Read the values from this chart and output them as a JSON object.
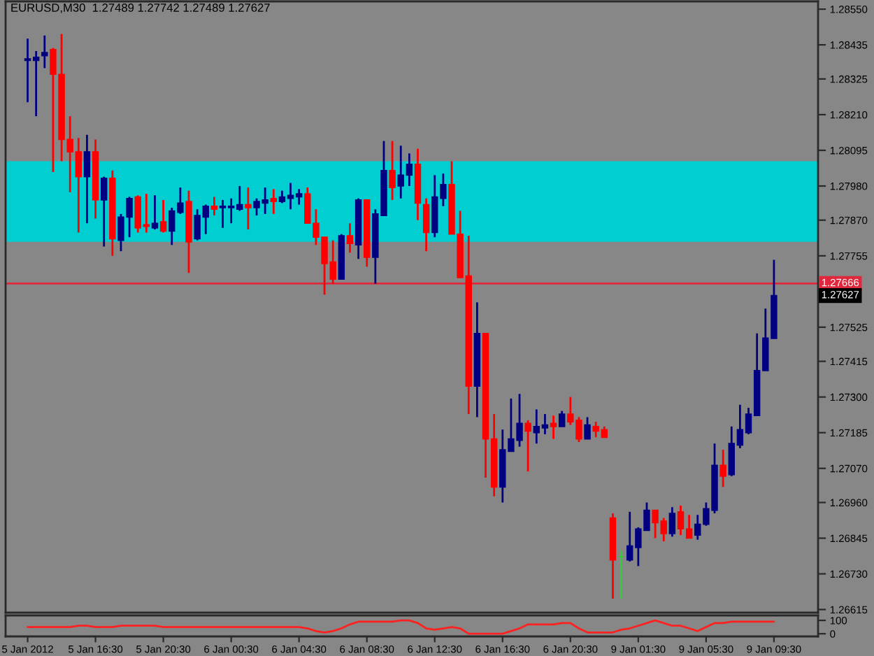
{
  "chart_data": [
    {
      "type": "candlestick",
      "title": "EURUSD,M30  1.27489 1.27742 1.27489 1.27627",
      "categories": [
        null,
        null,
        null,
        null,
        null,
        null,
        null,
        null,
        null,
        null,
        null,
        null,
        null,
        null,
        null,
        null,
        null,
        null,
        null,
        null,
        null,
        null,
        null,
        null,
        null,
        null,
        null,
        null,
        null,
        null,
        null,
        null,
        null,
        null,
        null,
        null,
        null,
        null,
        null,
        null,
        null,
        null,
        null,
        null,
        null,
        null,
        null,
        null,
        null,
        null,
        null,
        null,
        null,
        null,
        null,
        null,
        null,
        null,
        null,
        null,
        null,
        null,
        null,
        null,
        null,
        null,
        null,
        null,
        null,
        null,
        null,
        null,
        null,
        null,
        null,
        null,
        null,
        null,
        null,
        null,
        null,
        null,
        null,
        null,
        null,
        null,
        null,
        null,
        null
      ],
      "ohlc": [
        [
          1.28385,
          1.28455,
          1.2825,
          1.2839
        ],
        [
          1.28385,
          1.28415,
          1.28205,
          1.28395
        ],
        [
          1.284,
          1.28465,
          1.2836,
          1.2841
        ],
        [
          1.2842,
          1.28425,
          1.28025,
          1.2834
        ],
        [
          1.2834,
          1.2847,
          1.2806,
          1.2813
        ],
        [
          1.2813,
          1.28205,
          1.2796,
          1.2809
        ],
        [
          1.2809,
          1.28135,
          1.2783,
          1.2801
        ],
        [
          1.2801,
          1.28145,
          1.2786,
          1.2809
        ],
        [
          1.2809,
          1.2813,
          1.27875,
          1.27935
        ],
        [
          1.27935,
          1.2801,
          1.27785,
          1.28005
        ],
        [
          1.28005,
          1.2803,
          1.27755,
          1.2781
        ],
        [
          1.27805,
          1.2789,
          1.2777,
          1.2788
        ],
        [
          1.2788,
          1.27945,
          1.27815,
          1.2794
        ],
        [
          1.27945,
          1.2795,
          1.2783,
          1.27845
        ],
        [
          1.27855,
          1.27955,
          1.2783,
          1.2785
        ],
        [
          1.27845,
          1.2795,
          1.2784,
          1.2786
        ],
        [
          1.27865,
          1.27935,
          1.2783,
          1.27835
        ],
        [
          1.27835,
          1.2791,
          1.2779,
          1.279
        ],
        [
          1.27895,
          1.27975,
          1.2789,
          1.27925
        ],
        [
          1.2793,
          1.27965,
          1.277,
          1.278
        ],
        [
          1.2781,
          1.27905,
          1.27805,
          1.27885
        ],
        [
          1.2788,
          1.2792,
          1.27825,
          1.27915
        ],
        [
          1.27915,
          1.27945,
          1.27885,
          1.27905
        ],
        [
          1.2791,
          1.27935,
          1.27845,
          1.27915
        ],
        [
          1.2791,
          1.2794,
          1.2786,
          1.27915
        ],
        [
          1.27905,
          1.2798,
          1.279,
          1.2792
        ],
        [
          1.2792,
          1.27975,
          1.2784,
          1.2791
        ],
        [
          1.2791,
          1.2794,
          1.27885,
          1.2793
        ],
        [
          1.27925,
          1.27975,
          1.2789,
          1.27935
        ],
        [
          1.2794,
          1.2797,
          1.2789,
          1.2793
        ],
        [
          1.2793,
          1.27965,
          1.27925,
          1.27945
        ],
        [
          1.2794,
          1.2799,
          1.27905,
          1.2795
        ],
        [
          1.27945,
          1.2797,
          1.2792,
          1.27955
        ],
        [
          1.27955,
          1.27975,
          1.2786,
          1.2786
        ],
        [
          1.2786,
          1.27905,
          1.2779,
          1.27815
        ],
        [
          1.27815,
          1.27815,
          1.2763,
          1.2773
        ],
        [
          1.27735,
          1.27805,
          1.27665,
          1.2768
        ],
        [
          1.2768,
          1.27825,
          1.2768,
          1.2782
        ],
        [
          1.2782,
          1.2786,
          1.27765,
          1.27795
        ],
        [
          1.2779,
          1.2794,
          1.27745,
          1.27935
        ],
        [
          1.27935,
          1.27935,
          1.2772,
          1.2775
        ],
        [
          1.2775,
          1.27905,
          1.27665,
          1.2789
        ],
        [
          1.27885,
          1.28125,
          1.27885,
          1.2803
        ],
        [
          1.2803,
          1.28125,
          1.27935,
          1.27975
        ],
        [
          1.2798,
          1.2811,
          1.2794,
          1.28015
        ],
        [
          1.28015,
          1.28085,
          1.2798,
          1.2805
        ],
        [
          1.2805,
          1.281,
          1.2787,
          1.27925
        ],
        [
          1.2792,
          1.2794,
          1.2777,
          1.2783
        ],
        [
          1.2783,
          1.28015,
          1.27815,
          1.27945
        ],
        [
          1.2794,
          1.2802,
          1.27915,
          1.27985
        ],
        [
          1.27985,
          1.2806,
          1.27825,
          1.27825
        ],
        [
          1.27825,
          1.279,
          1.27685,
          1.27685
        ],
        [
          1.2769,
          1.2782,
          1.27245,
          1.27335
        ],
        [
          1.27335,
          1.27605,
          1.27235,
          1.27505
        ],
        [
          1.27505,
          1.27505,
          1.2704,
          1.27165
        ],
        [
          1.27165,
          1.27245,
          1.2698,
          1.2701
        ],
        [
          1.2701,
          1.27195,
          1.2696,
          1.2713
        ],
        [
          1.27125,
          1.27295,
          1.27125,
          1.27165
        ],
        [
          1.2716,
          1.2731,
          1.2714,
          1.27215
        ],
        [
          1.27215,
          1.27225,
          1.2706,
          1.2719
        ],
        [
          1.27185,
          1.2726,
          1.2715,
          1.27205
        ],
        [
          1.272,
          1.27245,
          1.2718,
          1.2721
        ],
        [
          1.27215,
          1.2724,
          1.27165,
          1.27205
        ],
        [
          1.27205,
          1.27255,
          1.27205,
          1.27245
        ],
        [
          1.27245,
          1.273,
          1.2721,
          1.2722
        ],
        [
          1.27225,
          1.27235,
          1.27155,
          1.27165
        ],
        [
          1.27165,
          1.27235,
          1.27165,
          1.2721
        ],
        [
          1.27205,
          1.2722,
          1.2717,
          1.2719
        ],
        [
          1.27195,
          1.27205,
          1.2717,
          1.2717
        ],
        [
          1.2691,
          1.26925,
          1.2665,
          1.26775
        ],
        [
          1.26785,
          1.26805,
          1.2665,
          1.26785
        ],
        [
          1.26775,
          1.2693,
          1.2677,
          1.2682
        ],
        [
          1.26815,
          1.2688,
          1.26755,
          1.26875
        ],
        [
          1.2687,
          1.2696,
          1.2687,
          1.26935
        ],
        [
          1.26935,
          1.26935,
          1.26845,
          1.26895
        ],
        [
          1.269,
          1.2691,
          1.26835,
          1.2686
        ],
        [
          1.2686,
          1.26945,
          1.2685,
          1.26925
        ],
        [
          1.2693,
          1.2695,
          1.26855,
          1.26875
        ],
        [
          1.26875,
          1.2692,
          1.26845,
          1.26845
        ],
        [
          1.26855,
          1.2692,
          1.2684,
          1.2689
        ],
        [
          1.2689,
          1.2696,
          1.26885,
          1.2694
        ],
        [
          1.26935,
          1.2715,
          1.26925,
          1.2708
        ],
        [
          1.2708,
          1.2713,
          1.2701,
          1.27045
        ],
        [
          1.2705,
          1.27205,
          1.27045,
          1.2715
        ],
        [
          1.27145,
          1.27275,
          1.27135,
          1.27195
        ],
        [
          1.27185,
          1.27265,
          1.2718,
          1.27245
        ],
        [
          1.2724,
          1.27505,
          1.2724,
          1.27385
        ],
        [
          1.27385,
          1.27585,
          1.27385,
          1.2749
        ],
        [
          1.27489,
          1.27742,
          1.27489,
          1.27627
        ]
      ],
      "colors": [
        "#000080",
        "#000080",
        "#000080",
        "#ff0000",
        "#ff0000",
        "#ff0000",
        "#ff0000",
        "#000080",
        "#ff0000",
        "#000080",
        "#ff0000",
        "#000080",
        "#000080",
        "#ff0000",
        "#ff0000",
        "#000080",
        "#ff0000",
        "#000080",
        "#000080",
        "#ff0000",
        "#000080",
        "#000080",
        "#ff0000",
        "#000080",
        "#000080",
        "#000080",
        "#ff0000",
        "#000080",
        "#000080",
        "#ff0000",
        "#000080",
        "#000080",
        "#000080",
        "#ff0000",
        "#ff0000",
        "#ff0000",
        "#ff0000",
        "#000080",
        "#ff0000",
        "#000080",
        "#ff0000",
        "#000080",
        "#000080",
        "#ff0000",
        "#000080",
        "#000080",
        "#ff0000",
        "#ff0000",
        "#000080",
        "#000080",
        "#ff0000",
        "#ff0000",
        "#ff0000",
        "#000080",
        "#ff0000",
        "#ff0000",
        "#000080",
        "#000080",
        "#000080",
        "#ff0000",
        "#000080",
        "#000080",
        "#ff0000",
        "#000080",
        "#ff0000",
        "#ff0000",
        "#000080",
        "#ff0000",
        "#ff0000",
        "#ff0000",
        "#32cd32",
        "#000080",
        "#000080",
        "#000080",
        "#ff0000",
        "#ff0000",
        "#000080",
        "#ff0000",
        "#ff0000",
        "#000080",
        "#000080",
        "#000080",
        "#ff0000",
        "#000080",
        "#000080",
        "#000080",
        "#000080",
        "#000080",
        "#000080"
      ],
      "bands": [
        {
          "axis": "y",
          "from": 1.278,
          "to": 1.2806,
          "color": "#00ced1"
        }
      ],
      "ylim": [
        1.26605,
        1.28575
      ],
      "yticks": [
        {
          "value": 1.2855,
          "label": "1.28550"
        },
        {
          "value": 1.28435,
          "label": "1.28435"
        },
        {
          "value": 1.28325,
          "label": "1.28325"
        },
        {
          "value": 1.2821,
          "label": "1.28210"
        },
        {
          "value": 1.28095,
          "label": "1.28095"
        },
        {
          "value": 1.2798,
          "label": "1.27980"
        },
        {
          "value": 1.2787,
          "label": "1.27870"
        },
        {
          "value": 1.27755,
          "label": "1.27755"
        },
        {
          "value": 1.27525,
          "label": "1.27525"
        },
        {
          "value": 1.27415,
          "label": "1.27415"
        },
        {
          "value": 1.273,
          "label": "1.27300"
        },
        {
          "value": 1.27185,
          "label": "1.27185"
        },
        {
          "value": 1.2707,
          "label": "1.27070"
        },
        {
          "value": 1.2696,
          "label": "1.26960"
        },
        {
          "value": 1.26845,
          "label": "1.26845"
        },
        {
          "value": 1.2673,
          "label": "1.26730"
        },
        {
          "value": 1.26615,
          "label": "1.26615"
        }
      ],
      "ref_lines": [
        {
          "axis": "y",
          "value": 1.27666,
          "label": "1.27666",
          "color": "#e0283c"
        }
      ],
      "annotations": [
        "1.27627"
      ]
    },
    {
      "type": "line",
      "categories": [
        "5 Jan 2012",
        null,
        null,
        null,
        null,
        null,
        null,
        null,
        "5 Jan 16:30",
        null,
        null,
        null,
        null,
        null,
        null,
        null,
        "5 Jan 20:30",
        null,
        null,
        null,
        null,
        null,
        null,
        null,
        "6 Jan 00:30",
        null,
        null,
        null,
        null,
        null,
        null,
        null,
        "6 Jan 04:30",
        null,
        null,
        null,
        null,
        null,
        null,
        null,
        "6 Jan 08:30",
        null,
        null,
        null,
        null,
        null,
        null,
        null,
        "6 Jan 12:30",
        null,
        null,
        null,
        null,
        null,
        null,
        null,
        "6 Jan 16:30",
        null,
        null,
        null,
        null,
        null,
        null,
        null,
        "6 Jan 20:30",
        null,
        null,
        null,
        null,
        null,
        null,
        null,
        "9 Jan 01:30",
        null,
        null,
        null,
        null,
        null,
        null,
        null,
        "9 Jan 05:30",
        null,
        null,
        null,
        null,
        null,
        null,
        null,
        "9 Jan 09:30"
      ],
      "series": [
        {
          "color": "#ff2020",
          "values": [
            50,
            50,
            50,
            50,
            50,
            50,
            60,
            60,
            50,
            50,
            50,
            60,
            60,
            60,
            60,
            60,
            50,
            50,
            50,
            50,
            50,
            50,
            50,
            50,
            50,
            50,
            50,
            50,
            50,
            50,
            50,
            50,
            50,
            40,
            20,
            10,
            20,
            40,
            70,
            90,
            90,
            90,
            90,
            90,
            100,
            100,
            80,
            40,
            30,
            40,
            50,
            40,
            0,
            0,
            0,
            0,
            0,
            20,
            40,
            70,
            70,
            70,
            70,
            80,
            80,
            40,
            10,
            10,
            10,
            10,
            30,
            40,
            60,
            80,
            100,
            80,
            60,
            60,
            40,
            20,
            50,
            80,
            80,
            90,
            90,
            90,
            90,
            90,
            90
          ]
        }
      ],
      "ylim": [
        -20,
        137
      ],
      "yticks": [
        100,
        0
      ]
    }
  ]
}
